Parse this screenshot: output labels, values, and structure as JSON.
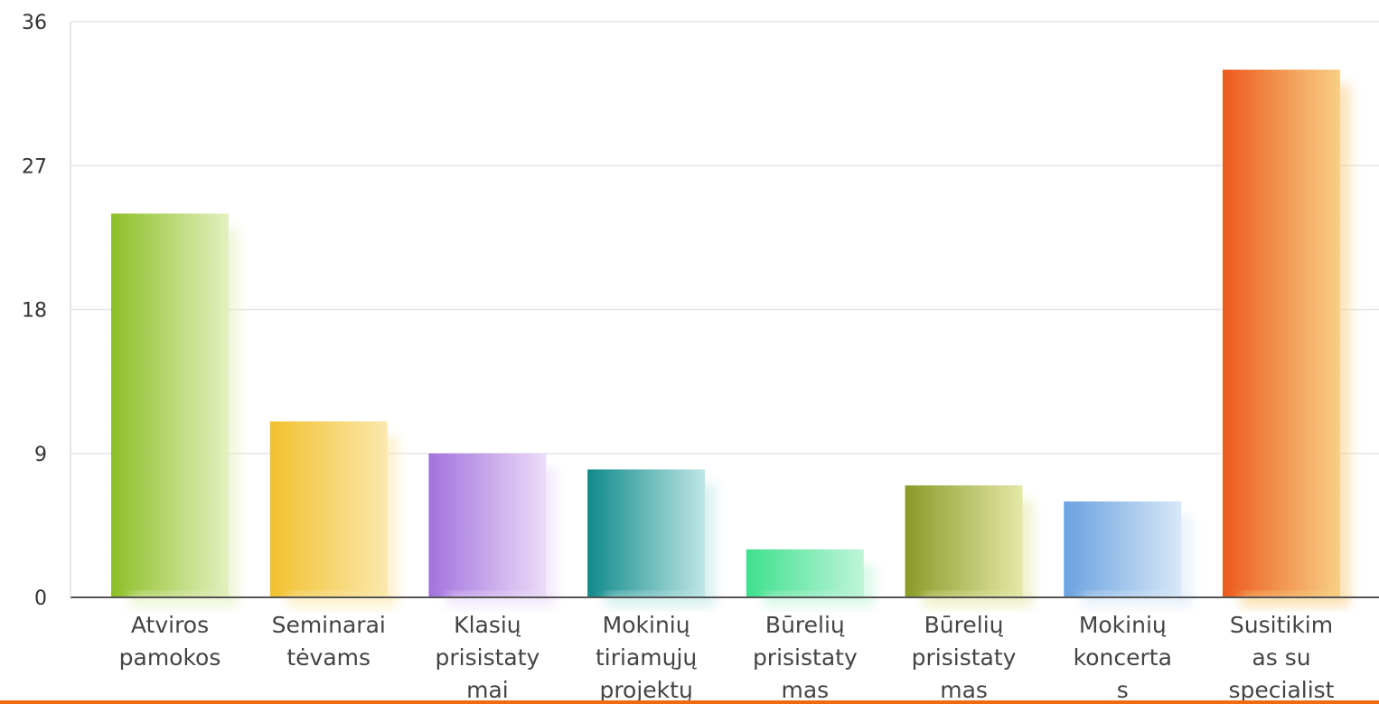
{
  "chart_data": {
    "type": "bar",
    "categories": [
      [
        "Atviros",
        "pamokos"
      ],
      [
        "Seminarai",
        "tėvams"
      ],
      [
        "Klasių",
        "prisistaty",
        "mai"
      ],
      [
        "Mokinių",
        "tiriamųjų",
        "projektų"
      ],
      [
        "Būrelių",
        "prisistaty",
        "mas"
      ],
      [
        "Būrelių",
        "prisistaty",
        "mas"
      ],
      [
        "Mokinių",
        "koncerta",
        "s"
      ],
      [
        "Susitikim",
        "as su",
        "specialist"
      ]
    ],
    "values": [
      24,
      11,
      9,
      8,
      3,
      7,
      6,
      33
    ],
    "ylim": [
      0,
      36
    ],
    "yticks": [
      "0",
      "9",
      "18",
      "27",
      "36"
    ],
    "grid": true,
    "bar_colors": [
      [
        "#8cbf26",
        "#e4f0c0"
      ],
      [
        "#f2c12e",
        "#fbe8ac"
      ],
      [
        "#a372de",
        "#ecdcf8"
      ],
      [
        "#0f8a8a",
        "#bfe6e6"
      ],
      [
        "#3ee08c",
        "#bff5da"
      ],
      [
        "#8a9a28",
        "#e4e8a6"
      ],
      [
        "#6aa2e0",
        "#d8e8f8"
      ],
      [
        "#ec5a1c",
        "#f8d086"
      ]
    ]
  }
}
